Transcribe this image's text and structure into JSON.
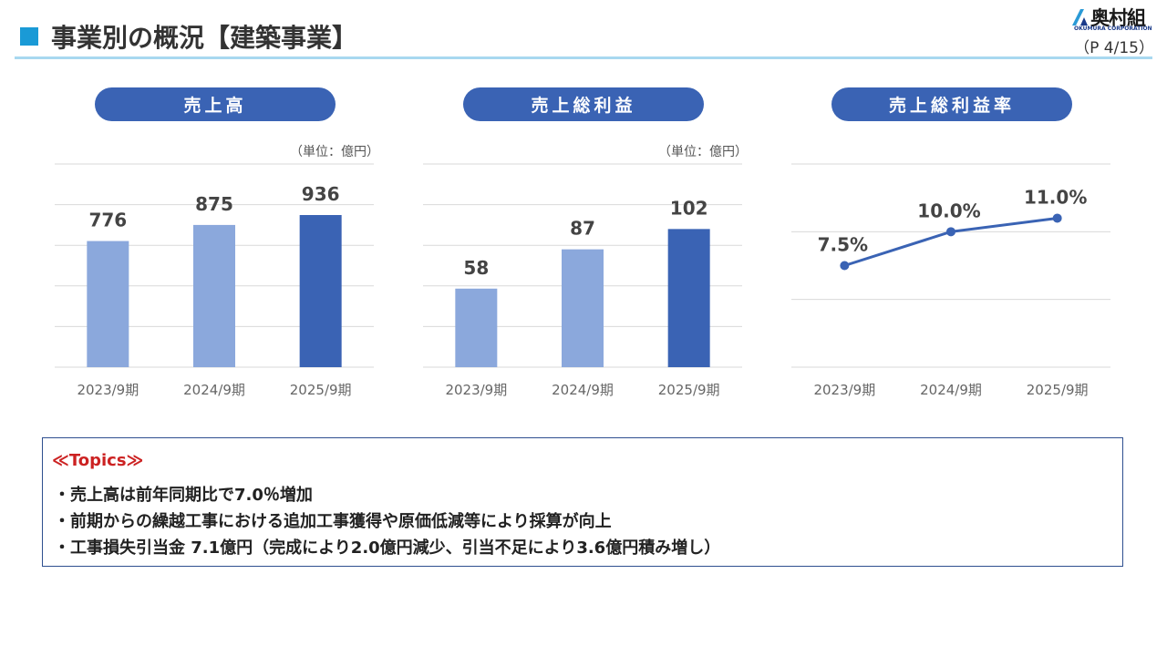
{
  "header": {
    "title": "事業別の概況【建築事業】",
    "page_indicator": "（P 4/15）",
    "logo_name": "奥村組",
    "logo_subtitle": "OKUMURA CORPORATION"
  },
  "colors": {
    "accent": "#1a9ad6",
    "rule": "#a8d8f0",
    "pill": "#3a63b4",
    "bar_light": "#8ba8dc",
    "bar_dark": "#3a63b4",
    "line": "#3a63b4",
    "grid": "#d9d9d9",
    "topics_title": "#cc2222"
  },
  "units": {
    "sales": "（単位：億円）",
    "gross_profit": "（単位：億円）"
  },
  "chart_data": [
    {
      "type": "bar",
      "title": "売上高",
      "categories": [
        "2023/9期",
        "2024/9期",
        "2025/9期"
      ],
      "values": [
        776,
        875,
        936
      ],
      "value_labels": [
        "776",
        "875",
        "936"
      ],
      "highlight_index": 2,
      "ylim": [
        0,
        1250
      ],
      "grid": true
    },
    {
      "type": "bar",
      "title": "売上総利益",
      "categories": [
        "2023/9期",
        "2024/9期",
        "2025/9期"
      ],
      "values": [
        58,
        87,
        102
      ],
      "value_labels": [
        "58",
        "87",
        "102"
      ],
      "highlight_index": 2,
      "ylim": [
        0,
        150
      ],
      "grid": true
    },
    {
      "type": "line",
      "title": "売上総利益率",
      "categories": [
        "2023/9期",
        "2024/9期",
        "2025/9期"
      ],
      "values": [
        7.5,
        10.0,
        11.0
      ],
      "value_labels": [
        "7.5%",
        "10.0%",
        "11.0%"
      ],
      "ylim": [
        0,
        15
      ],
      "grid": true
    }
  ],
  "topics": {
    "heading": "≪Topics≫",
    "items": [
      "・売上高は前年同期比で7.0％増加",
      "・前期からの繰越工事における追加工事獲得や原価低減等により採算が向上",
      "・工事損失引当金 7.1億円（完成により2.0億円減少、引当不足により3.6億円積み増し）"
    ]
  }
}
